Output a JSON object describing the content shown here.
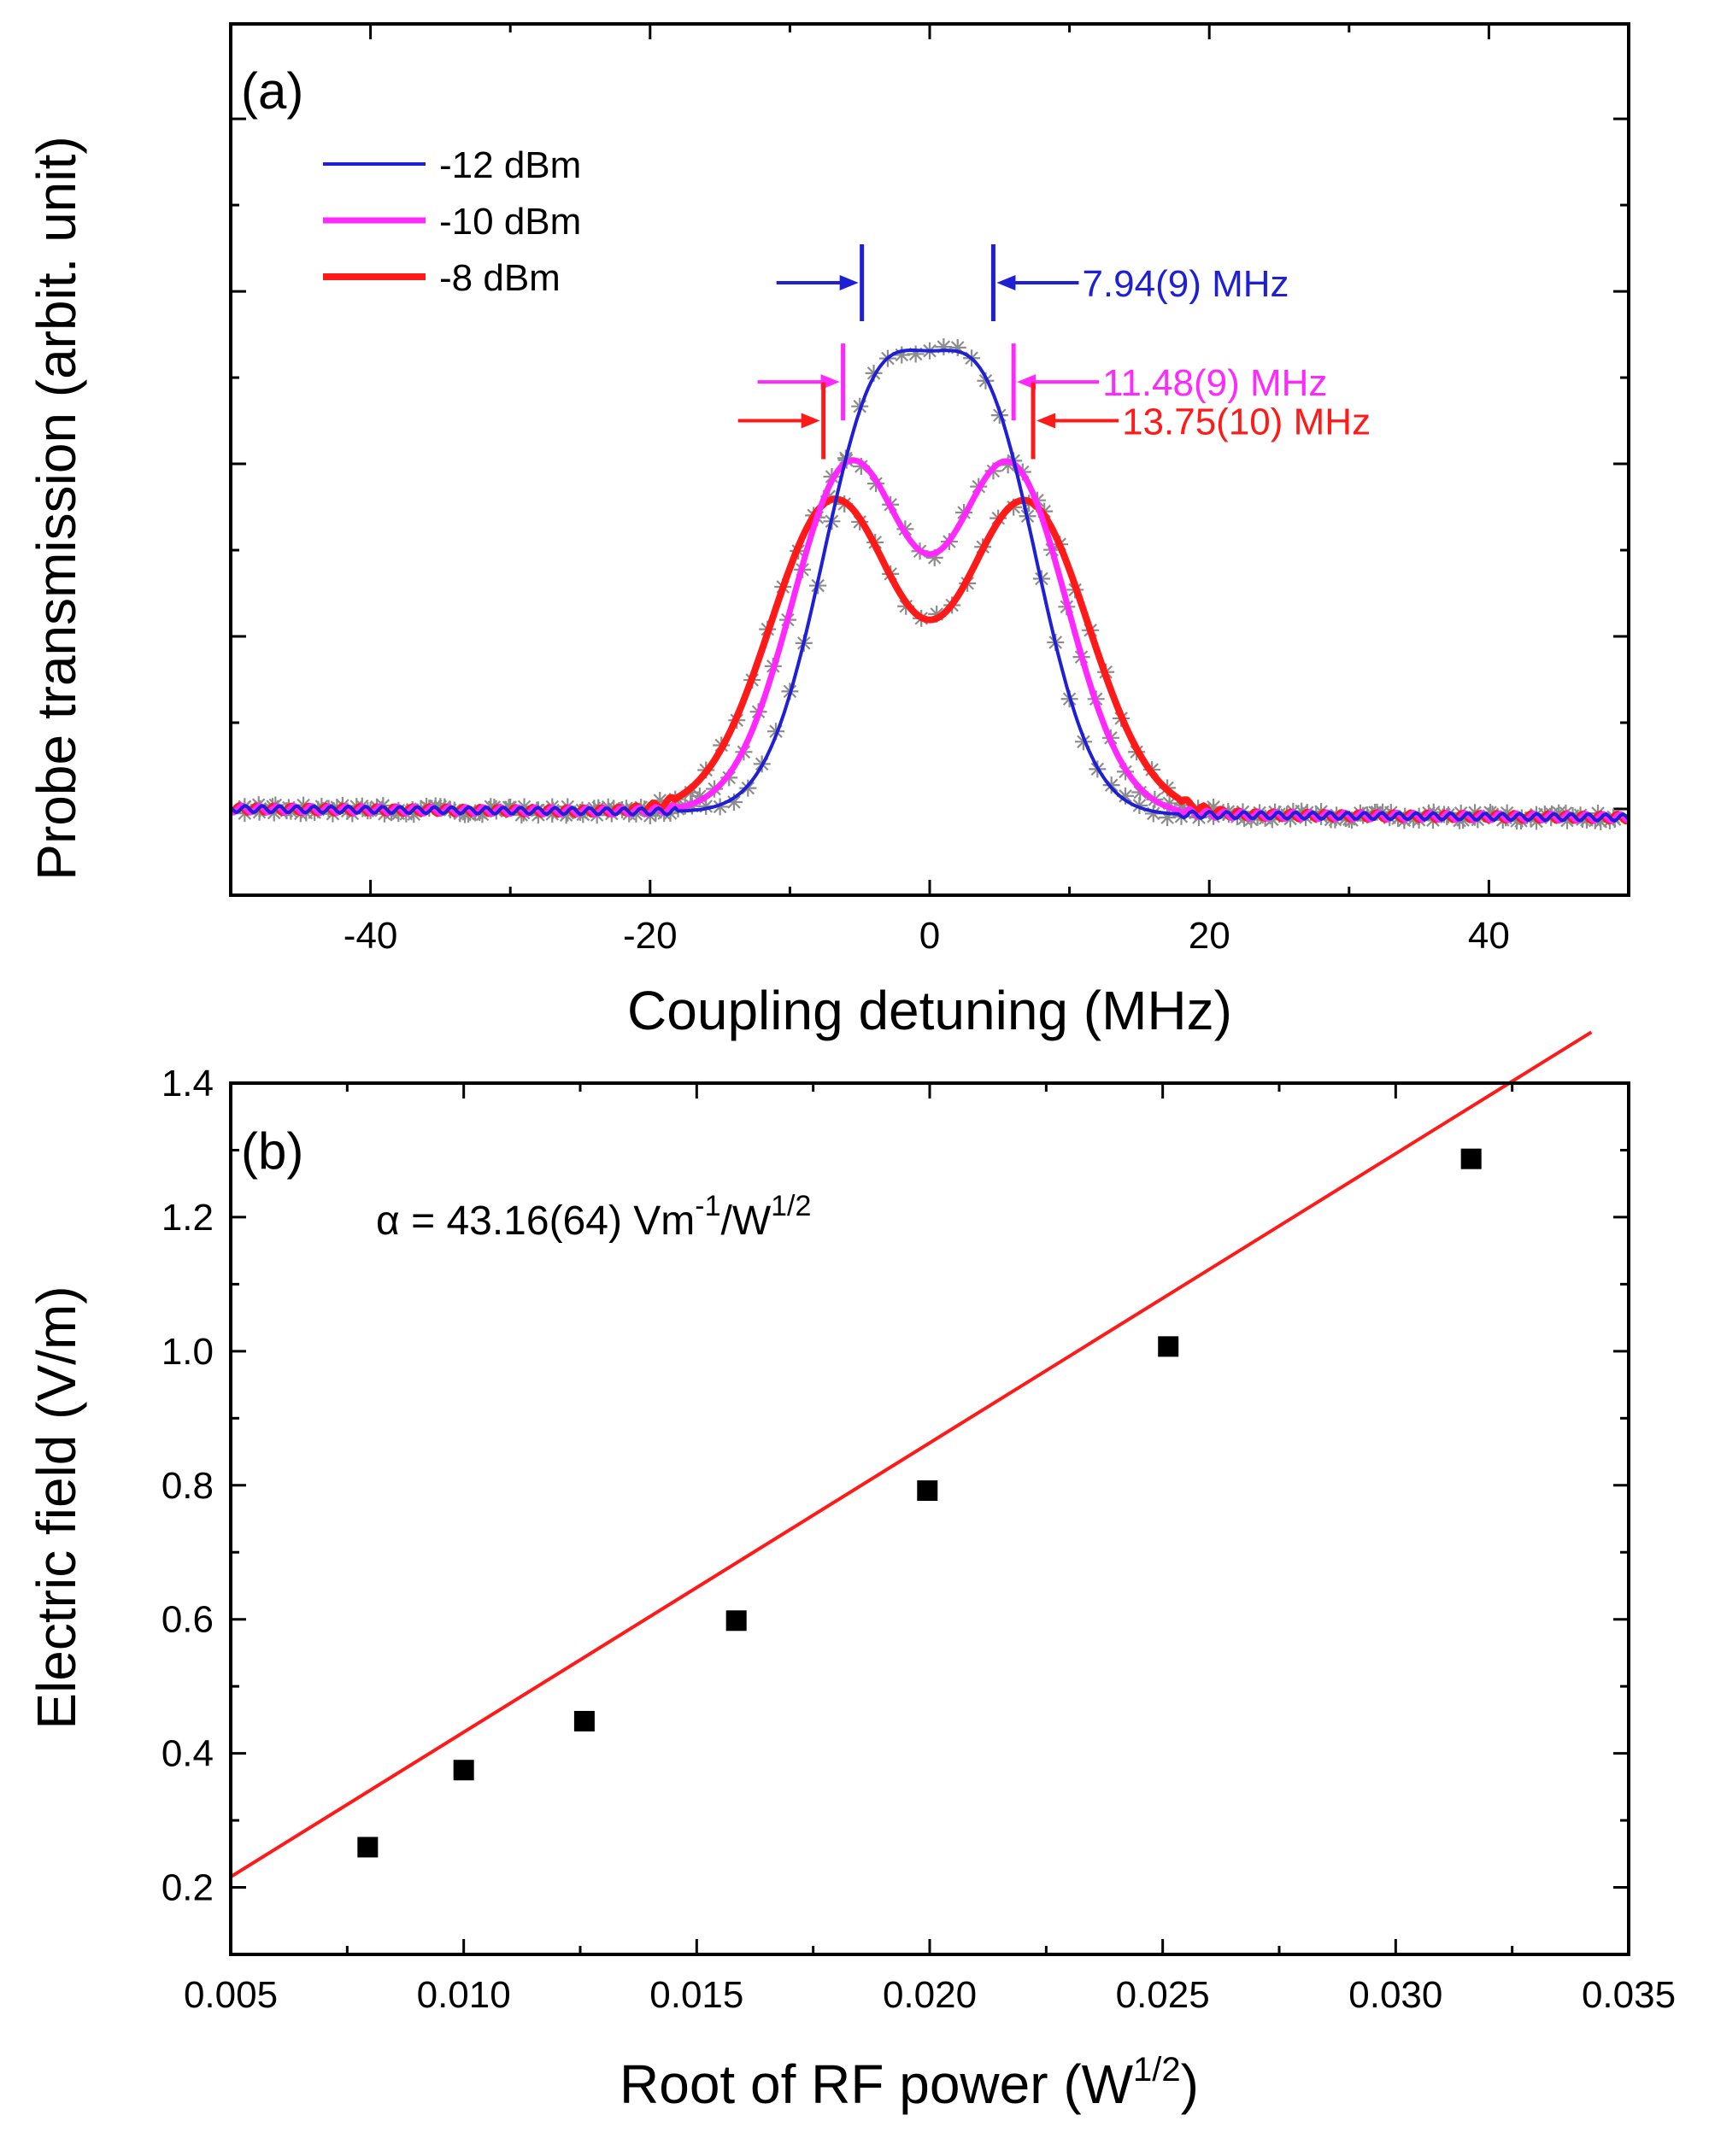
{
  "chart_data": [
    {
      "type": "line",
      "panel_label": "(a)",
      "xlabel": "Coupling detuning (MHz)",
      "ylabel": "Probe transmission (arbit. unit)",
      "xlim": [
        -50,
        50
      ],
      "ylim": [
        -1,
        9.1
      ],
      "x_ticks": [
        -40,
        -20,
        0,
        20,
        40
      ],
      "x_tick_labels": [
        "-40",
        "-20",
        "0",
        "20",
        "40"
      ],
      "y_tick_labels_shown": false,
      "grid": false,
      "legend_position": "top-left",
      "series": [
        {
          "name": "-12 dBm",
          "color": "#1f1fd6",
          "line_width": 4,
          "amplitude": 4.5,
          "peak_separation_MHz": 7.94,
          "peak_width_MHz": 3.9,
          "baseline_left": 0.0,
          "baseline_right": -0.1
        },
        {
          "name": "-10 dBm",
          "color": "#ff28ff",
          "line_width": 7,
          "amplitude": 4.0,
          "peak_separation_MHz": 11.48,
          "peak_width_MHz": 4.1,
          "baseline_left": 0.0,
          "baseline_right": -0.1
        },
        {
          "name": "-8 dBm",
          "color": "#ff1a1a",
          "line_width": 8,
          "amplitude": 3.6,
          "peak_separation_MHz": 13.75,
          "peak_width_MHz": 4.5,
          "baseline_left": 0.0,
          "baseline_right": -0.1
        }
      ],
      "experimental_marker": {
        "symbol": "asterisk",
        "color": "#8c8c8c"
      },
      "annotations": [
        {
          "text": "7.94(9) MHz",
          "color": "#1f1fd6",
          "peaks_MHz": [
            -4.85,
            4.55
          ],
          "arrow_y": 6.1
        },
        {
          "text": "11.48(9) MHz",
          "color": "#ff28ff",
          "peaks_MHz": [
            -6.2,
            6.0
          ],
          "arrow_y": 4.95
        },
        {
          "text": "13.75(10) MHz",
          "color": "#ff1a1a",
          "peaks_MHz": [
            -7.6,
            7.4
          ],
          "arrow_y": 4.5
        }
      ]
    },
    {
      "type": "scatter",
      "panel_label": "(b)",
      "xlabel": "Root of RF power (W",
      "xlabel_sup": "1/2",
      "xlabel_end": ")",
      "ylabel": "Electric field (V/m)",
      "xlim": [
        0.005,
        0.035
      ],
      "ylim": [
        0.1,
        1.4
      ],
      "x_ticks": [
        0.005,
        0.01,
        0.015,
        0.02,
        0.025,
        0.03,
        0.035
      ],
      "x_tick_labels": [
        "0.005",
        "0.010",
        "0.015",
        "0.020",
        "0.025",
        "0.030",
        "0.035"
      ],
      "y_ticks": [
        0.2,
        0.4,
        0.6,
        0.8,
        1.0,
        1.2,
        1.4
      ],
      "y_tick_labels": [
        "0.2",
        "0.4",
        "0.6",
        "0.8",
        "1.0",
        "1.2",
        "1.4"
      ],
      "grid": false,
      "points": {
        "x": [
          0.00794,
          0.01,
          0.01259,
          0.01585,
          0.01995,
          0.02512,
          0.03162
        ],
        "y": [
          0.26,
          0.375,
          0.448,
          0.598,
          0.792,
          1.007,
          1.287
        ],
        "color": "#000000"
      },
      "fit_line": {
        "slope": 43.16,
        "x": [
          0.005,
          0.0342
        ],
        "color": "#ff1a1a"
      },
      "fit_text": {
        "alpha": "α",
        "rest": " = 43.16(64) Vm",
        "sup1": "-1",
        "mid": "/W",
        "sup2": "1/2"
      }
    }
  ]
}
